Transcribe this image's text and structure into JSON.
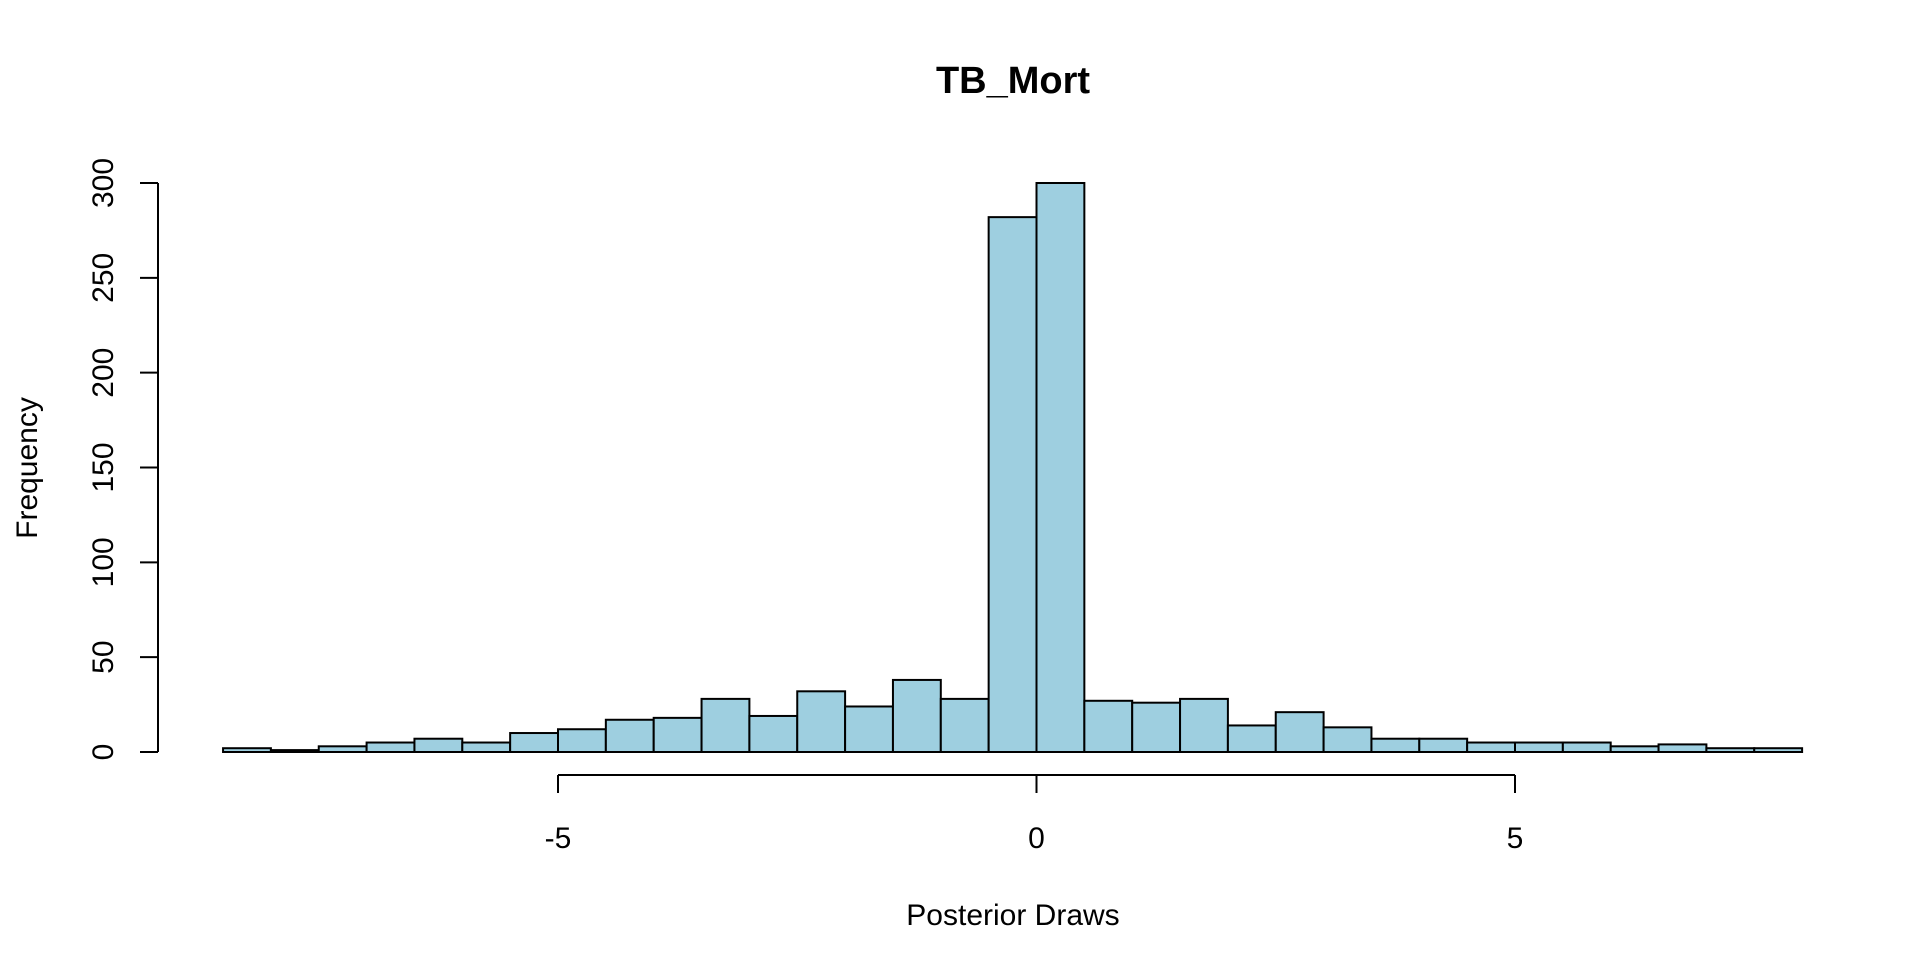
{
  "chart_data": {
    "type": "bar",
    "subtype": "histogram",
    "title": "TB_Mort",
    "xlabel": "Posterior Draws",
    "ylabel": "Frequency",
    "bar_color": "#9ecfe0",
    "edge_color": "#000000",
    "bin_width": 0.5,
    "bin_start": -8.5,
    "values": [
      2,
      1,
      3,
      5,
      7,
      5,
      10,
      12,
      17,
      18,
      28,
      19,
      32,
      24,
      38,
      28,
      282,
      300,
      27,
      26,
      28,
      14,
      21,
      13,
      7,
      7,
      5,
      5,
      5,
      3,
      4,
      2,
      2
    ],
    "xlim": [
      -8.5,
      8
    ],
    "ylim": [
      0,
      300
    ],
    "x_axis": {
      "range": [
        -5,
        5
      ],
      "ticks": [
        -5,
        0,
        5
      ],
      "tick_labels": [
        "-5",
        "0",
        "5"
      ]
    },
    "y_axis": {
      "range": [
        0,
        300
      ],
      "ticks": [
        0,
        50,
        100,
        150,
        200,
        250,
        300
      ],
      "tick_labels": [
        "0",
        "50",
        "100",
        "150",
        "200",
        "250",
        "300"
      ]
    },
    "grid": false,
    "legend": "none"
  }
}
